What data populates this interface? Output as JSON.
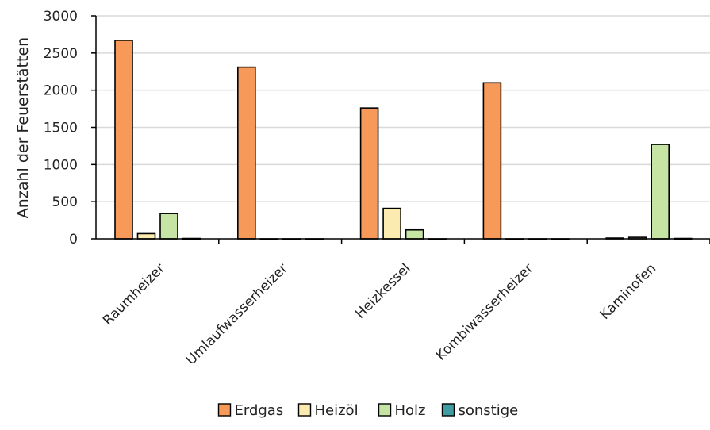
{
  "chart_data": {
    "type": "bar",
    "title": "",
    "xlabel": "",
    "ylabel": "Anzahl der Feuerstätten",
    "ylim": [
      0,
      3000
    ],
    "yticks": [
      0,
      500,
      1000,
      1500,
      2000,
      2500,
      3000
    ],
    "grid": true,
    "legend_position": "bottom",
    "categories": [
      "Raumheizer",
      "Umlaufwasserheizer",
      "Heizkessel",
      "Kombiwasserheizer",
      "Kaminofen"
    ],
    "series": [
      {
        "name": "Erdgas",
        "color": "#f79a59",
        "values": [
          2670,
          2310,
          1760,
          2100,
          10
        ]
      },
      {
        "name": "Heizöl",
        "color": "#fcebb0",
        "values": [
          70,
          0,
          410,
          0,
          20
        ]
      },
      {
        "name": "Holz",
        "color": "#c6e5a5",
        "values": [
          340,
          0,
          120,
          0,
          1270
        ]
      },
      {
        "name": "sonstige",
        "color": "#3f9ca3",
        "values": [
          5,
          0,
          0,
          0,
          5
        ]
      }
    ]
  }
}
